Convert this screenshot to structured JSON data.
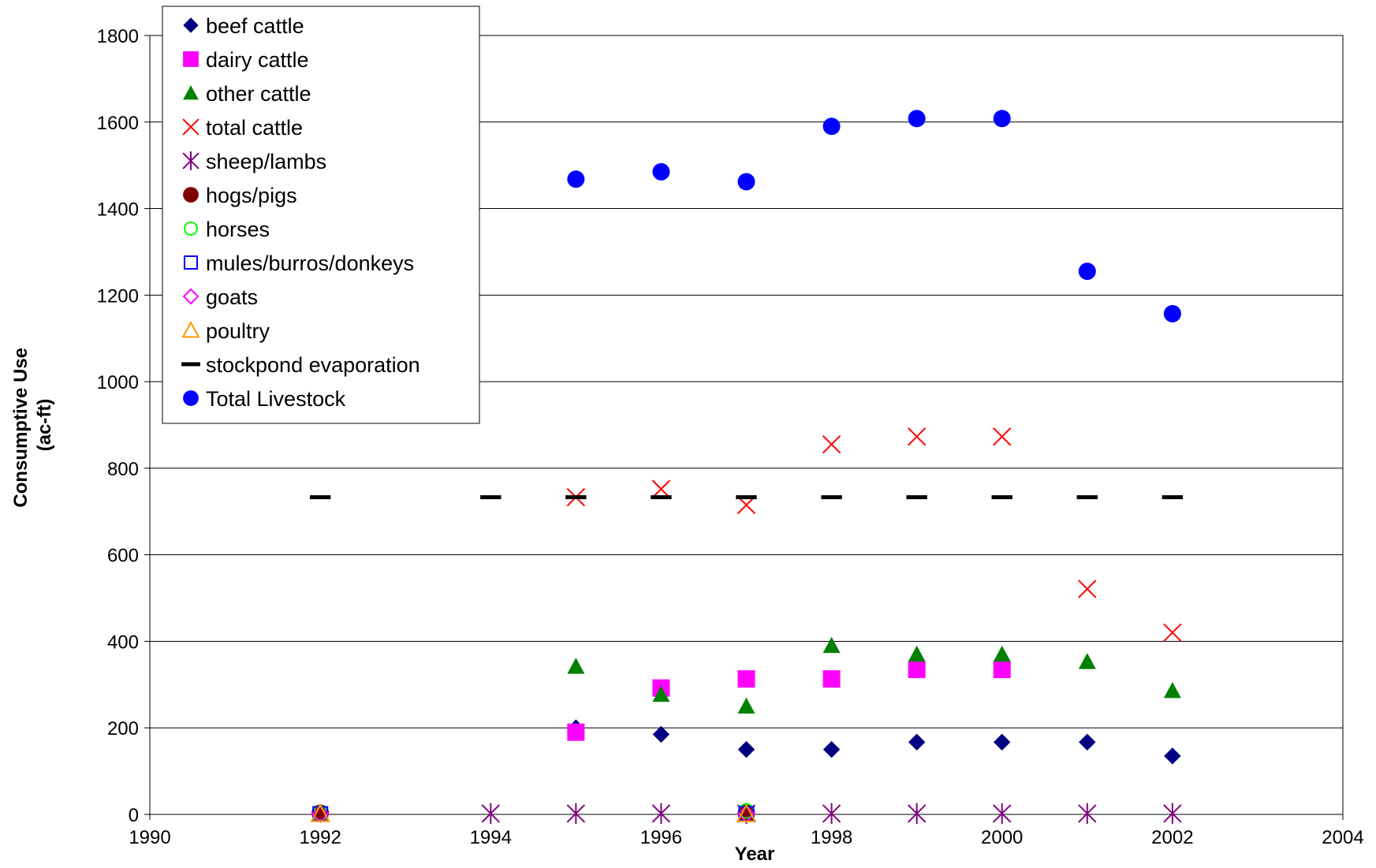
{
  "chart_data": {
    "type": "scatter",
    "title": "",
    "xlabel": "Year",
    "ylabel_lines": [
      "Consumptive Use",
      "(ac-ft)"
    ],
    "xlim": [
      1990,
      2004
    ],
    "ylim": [
      0,
      1800
    ],
    "x_ticks": [
      1990,
      1992,
      1994,
      1996,
      1998,
      2000,
      2002,
      2004
    ],
    "y_ticks": [
      0,
      200,
      400,
      600,
      800,
      1000,
      1200,
      1400,
      1600,
      1800
    ],
    "grid": "horizontal",
    "legend_position": "top-left",
    "series": [
      {
        "name": "beef cattle",
        "marker": "diamond-filled",
        "color": "#000080",
        "points": [
          [
            1995,
            200
          ],
          [
            1996,
            185
          ],
          [
            1997,
            150
          ],
          [
            1998,
            150
          ],
          [
            1999,
            167
          ],
          [
            2000,
            167
          ],
          [
            2001,
            167
          ],
          [
            2002,
            135
          ]
        ]
      },
      {
        "name": "dairy cattle",
        "marker": "square-filled",
        "color": "#FF00FF",
        "points": [
          [
            1995,
            190
          ],
          [
            1996,
            292
          ],
          [
            1997,
            313
          ],
          [
            1998,
            313
          ],
          [
            1999,
            335
          ],
          [
            2000,
            335
          ]
        ]
      },
      {
        "name": "other cattle",
        "marker": "triangle-filled",
        "color": "#008000",
        "points": [
          [
            1995,
            342
          ],
          [
            1996,
            277
          ],
          [
            1997,
            250
          ],
          [
            1998,
            390
          ],
          [
            1999,
            370
          ],
          [
            2000,
            370
          ],
          [
            2001,
            353
          ],
          [
            2002,
            286
          ]
        ]
      },
      {
        "name": "total cattle",
        "marker": "x",
        "color": "#FF0000",
        "points": [
          [
            1995,
            733
          ],
          [
            1996,
            752
          ],
          [
            1997,
            715
          ],
          [
            1998,
            855
          ],
          [
            1999,
            873
          ],
          [
            2000,
            873
          ],
          [
            2001,
            521
          ],
          [
            2002,
            420
          ]
        ]
      },
      {
        "name": "sheep/lambs",
        "marker": "asterisk",
        "color": "#800080",
        "points": [
          [
            1994,
            2
          ],
          [
            1995,
            2
          ],
          [
            1996,
            2
          ],
          [
            1997,
            2
          ],
          [
            1998,
            2
          ],
          [
            1999,
            2
          ],
          [
            2000,
            2
          ],
          [
            2001,
            2
          ],
          [
            2002,
            2
          ]
        ]
      },
      {
        "name": "hogs/pigs",
        "marker": "circle-filled",
        "color": "#800000",
        "points": [
          [
            1992,
            3
          ],
          [
            1997,
            3
          ]
        ]
      },
      {
        "name": "horses",
        "marker": "circle-open",
        "color": "#00FF00",
        "points": [
          [
            1992,
            3
          ],
          [
            1997,
            8
          ]
        ]
      },
      {
        "name": "mules/burros/donkeys",
        "marker": "square-open",
        "color": "#0000FF",
        "points": [
          [
            1992,
            1
          ],
          [
            1997,
            1
          ]
        ]
      },
      {
        "name": "goats",
        "marker": "diamond-open",
        "color": "#FF00FF",
        "points": [
          [
            1992,
            1
          ],
          [
            1997,
            1
          ]
        ]
      },
      {
        "name": "poultry",
        "marker": "triangle-open",
        "color": "#FF9900",
        "points": [
          [
            1992,
            1
          ],
          [
            1997,
            1
          ]
        ]
      },
      {
        "name": "stockpond evaporation",
        "marker": "dash",
        "color": "#000000",
        "points": [
          [
            1992,
            733
          ],
          [
            1994,
            733
          ],
          [
            1995,
            733
          ],
          [
            1996,
            733
          ],
          [
            1997,
            733
          ],
          [
            1998,
            733
          ],
          [
            1999,
            733
          ],
          [
            2000,
            733
          ],
          [
            2001,
            733
          ],
          [
            2002,
            733
          ]
        ]
      },
      {
        "name": "Total Livestock",
        "marker": "circle-filled",
        "color": "#0000FF",
        "points": [
          [
            1995,
            1468
          ],
          [
            1996,
            1485
          ],
          [
            1997,
            1462
          ],
          [
            1998,
            1590
          ],
          [
            1999,
            1608
          ],
          [
            2000,
            1608
          ],
          [
            2001,
            1255
          ],
          [
            2002,
            1157
          ]
        ]
      }
    ]
  }
}
